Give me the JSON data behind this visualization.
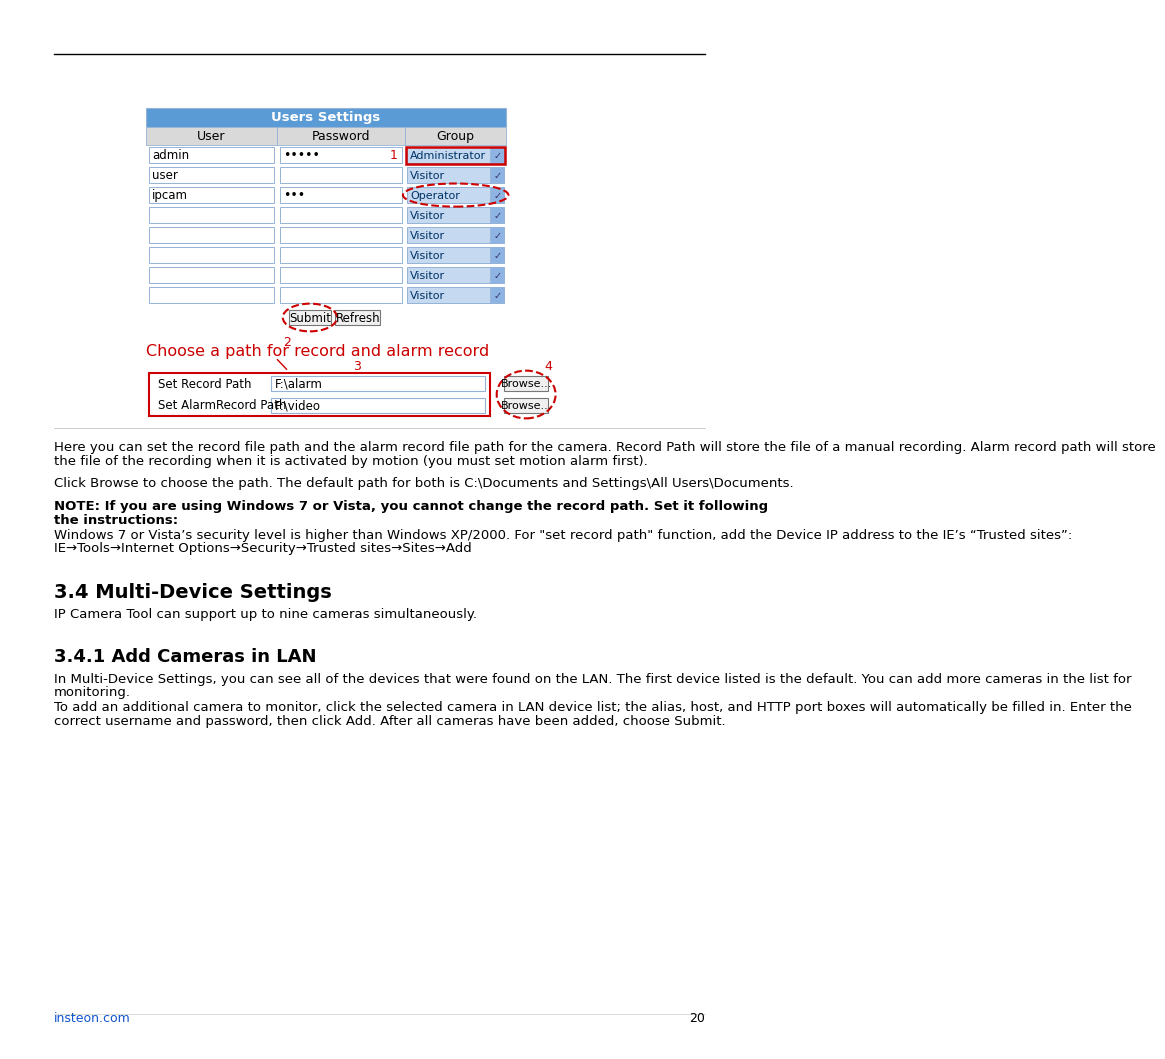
{
  "bg_color": "#ffffff",
  "table_title": "Users Settings",
  "table_title_bg": "#5b9bd5",
  "table_title_color": "#ffffff",
  "table_header_bg": "#d9d9d9",
  "col_headers": [
    "User",
    "Password",
    "Group"
  ],
  "users": [
    "admin",
    "user",
    "ipcam",
    "",
    "",
    "",
    "",
    ""
  ],
  "passwords": [
    "•••••",
    "",
    "•••",
    "",
    "",
    "",
    "",
    ""
  ],
  "groups": [
    "Administrator",
    "Visitor",
    "Operator",
    "Visitor",
    "Visitor",
    "Visitor",
    "Visitor",
    "Visitor"
  ],
  "group_text_color": "#003366",
  "submit_label": "Submit",
  "refresh_label": "Refresh",
  "choose_path_label": "Choose a path for record and alarm record",
  "record_rows": [
    {
      "label": "Set Record Path",
      "value": "F:\\alarm"
    },
    {
      "label": "Set AlarmRecord Path",
      "value": "F:\\video"
    }
  ],
  "para_here": "Here you can set the record file path and the alarm record file path for the camera. Record Path will store the file of a manual recording. Alarm record path will store the file of the recording when it is activated by motion (you must set motion alarm first).",
  "para_click": "Click Browse to choose the path. The default path for both is C:\\Documents and Settings\\All Users\\Documents.",
  "note_bold1": "NOTE: If you are using Windows 7 or Vista, you cannot change the record path. Set it following",
  "note_bold2": "the instructions:",
  "note_normal": "Windows 7 or Vista’s security level is higher than Windows XP/2000. For \"set record path\" function, add the Device IP address to the IE’s “Trusted sites”: IE→Tools→Internet Options→Security→Trusted sites→Sites→Add",
  "section_title": "3.4 Multi-Device Settings",
  "section_para": "IP Camera Tool can support up to nine cameras simultaneously.",
  "subsection_title": "3.4.1 Add Cameras in LAN",
  "sub_para1": "In Multi-Device Settings, you can see all of the devices that were found on the LAN. The first device listed is the default. You can add more cameras in the list for monitoring.",
  "sub_para2": "To add an additional camera to monitor, click the selected camera in LAN device list; the alias, host, and HTTP port boxes will automatically be filled in. Enter the correct username and password, then click Add. After all cameras have been added, choose Submit.",
  "footer_link": "insteon.com",
  "footer_page": "20",
  "red_color": "#cc0000",
  "blue_link_color": "#1155cc",
  "dropdown_bg": "#c5d9f1",
  "dropdown_arrow_bg": "#8db4e2",
  "cell_border": "#95b3d7",
  "table_outer_border": "#95b3d7"
}
